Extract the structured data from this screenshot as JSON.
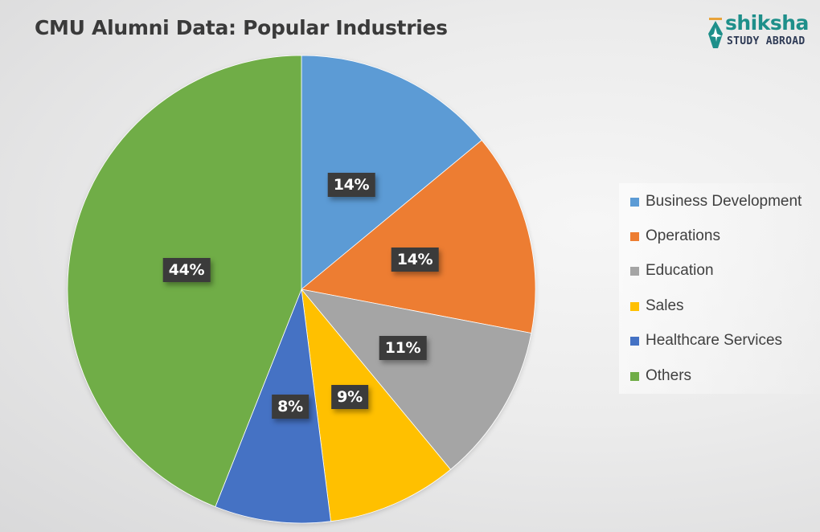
{
  "header": {
    "title": "CMU Alumni Data: Popular Industries"
  },
  "logo": {
    "brand": "shiksha",
    "subtitle": "STUDY ABROAD",
    "icon": "pen-nib-plane-icon",
    "brand_color": "#1e8f8a"
  },
  "legend": {
    "items": [
      {
        "label": "Business Development",
        "color": "#5b9bd5"
      },
      {
        "label": "Operations",
        "color": "#ed7d31"
      },
      {
        "label": "Education",
        "color": "#a5a5a5"
      },
      {
        "label": "Sales",
        "color": "#ffc000"
      },
      {
        "label": "Healthcare Services",
        "color": "#4472c4"
      },
      {
        "label": "Others",
        "color": "#70ad47"
      }
    ]
  },
  "labels": {
    "business_development": "14%",
    "operations": "14%",
    "education": "11%",
    "sales": "9%",
    "healthcare_services": "8%",
    "others": "44%"
  },
  "chart_data": {
    "type": "pie",
    "title": "CMU Alumni Data: Popular Industries",
    "categories": [
      "Business Development",
      "Operations",
      "Education",
      "Sales",
      "Healthcare Services",
      "Others"
    ],
    "values": [
      14,
      14,
      11,
      9,
      8,
      44
    ],
    "unit": "%",
    "colors": [
      "#5b9bd5",
      "#ed7d31",
      "#a5a5a5",
      "#ffc000",
      "#4472c4",
      "#70ad47"
    ],
    "start_angle": "12 o'clock, clockwise",
    "data_labels": true,
    "legend_position": "right"
  }
}
